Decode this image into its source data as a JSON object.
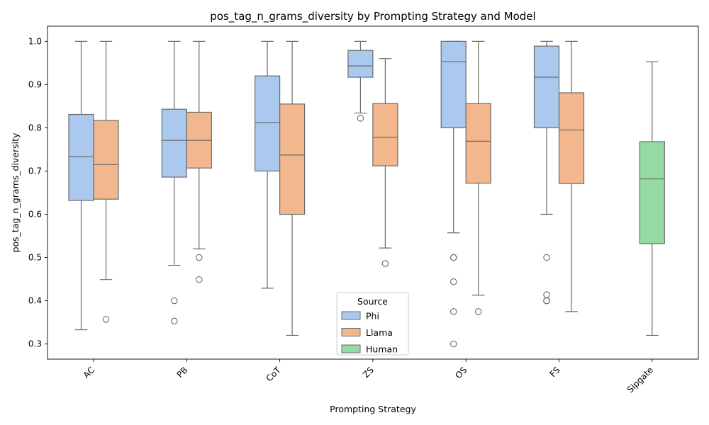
{
  "chart_data": {
    "type": "box",
    "title": "pos_tag_n_grams_diversity by Prompting Strategy and Model",
    "xlabel": "Prompting Strategy",
    "ylabel": "pos_tag_n_grams_diversity",
    "ylim": [
      0.265,
      1.035
    ],
    "yticks": [
      0.3,
      0.4,
      0.5,
      0.6,
      0.7,
      0.8,
      0.9,
      1.0
    ],
    "ytick_labels": [
      "0.3",
      "0.4",
      "0.5",
      "0.6",
      "0.7",
      "0.8",
      "0.9",
      "1.0"
    ],
    "categories": [
      "AC",
      "PB",
      "CoT",
      "ZS",
      "OS",
      "FS",
      "Sipgate"
    ],
    "grid": false,
    "legend": {
      "title": "Source",
      "placement": "lower-center",
      "entries": [
        {
          "name": "Phi",
          "color": "#abc9ee"
        },
        {
          "name": "Llama",
          "color": "#f3b78e"
        },
        {
          "name": "Human",
          "color": "#95d9a3"
        }
      ]
    },
    "series": [
      {
        "name": "Phi",
        "color": "#abc9ee",
        "boxes": [
          {
            "category": "AC",
            "whislo": 0.333,
            "q1": 0.632,
            "med": 0.733,
            "q3": 0.831,
            "whishi": 1.0,
            "fliers": []
          },
          {
            "category": "PB",
            "whislo": 0.482,
            "q1": 0.686,
            "med": 0.771,
            "q3": 0.843,
            "whishi": 1.0,
            "fliers": [
              0.4,
              0.353
            ]
          },
          {
            "category": "CoT",
            "whislo": 0.429,
            "q1": 0.7,
            "med": 0.812,
            "q3": 0.92,
            "whishi": 1.0,
            "fliers": []
          },
          {
            "category": "ZS",
            "whislo": 0.834,
            "q1": 0.917,
            "med": 0.943,
            "q3": 0.979,
            "whishi": 1.0,
            "fliers": [
              0.822
            ]
          },
          {
            "category": "OS",
            "whislo": 0.557,
            "q1": 0.8,
            "med": 0.953,
            "q3": 1.0,
            "whishi": 1.0,
            "fliers": [
              0.5,
              0.5,
              0.444,
              0.375,
              0.3
            ]
          },
          {
            "category": "FS",
            "whislo": 0.6,
            "q1": 0.8,
            "med": 0.917,
            "q3": 0.989,
            "whishi": 1.0,
            "fliers": [
              0.5,
              0.414,
              0.4,
              0.4
            ]
          }
        ]
      },
      {
        "name": "Llama",
        "color": "#f3b78e",
        "boxes": [
          {
            "category": "AC",
            "whislo": 0.449,
            "q1": 0.635,
            "med": 0.715,
            "q3": 0.817,
            "whishi": 1.0,
            "fliers": [
              0.357
            ]
          },
          {
            "category": "PB",
            "whislo": 0.52,
            "q1": 0.707,
            "med": 0.771,
            "q3": 0.836,
            "whishi": 1.0,
            "fliers": [
              0.5,
              0.449
            ]
          },
          {
            "category": "CoT",
            "whislo": 0.32,
            "q1": 0.6,
            "med": 0.737,
            "q3": 0.855,
            "whishi": 1.0,
            "fliers": []
          },
          {
            "category": "ZS",
            "whislo": 0.522,
            "q1": 0.712,
            "med": 0.778,
            "q3": 0.856,
            "whishi": 0.96,
            "fliers": [
              0.486
            ]
          },
          {
            "category": "OS",
            "whislo": 0.413,
            "q1": 0.672,
            "med": 0.769,
            "q3": 0.856,
            "whishi": 1.0,
            "fliers": [
              0.375
            ]
          },
          {
            "category": "FS",
            "whislo": 0.375,
            "q1": 0.671,
            "med": 0.795,
            "q3": 0.881,
            "whishi": 1.0,
            "fliers": []
          }
        ]
      },
      {
        "name": "Human",
        "color": "#95d9a3",
        "boxes": [
          {
            "category": "Sipgate",
            "whislo": 0.32,
            "q1": 0.532,
            "med": 0.682,
            "q3": 0.768,
            "whishi": 0.953,
            "fliers": []
          }
        ]
      }
    ],
    "line_color": "#6b6b6b"
  }
}
